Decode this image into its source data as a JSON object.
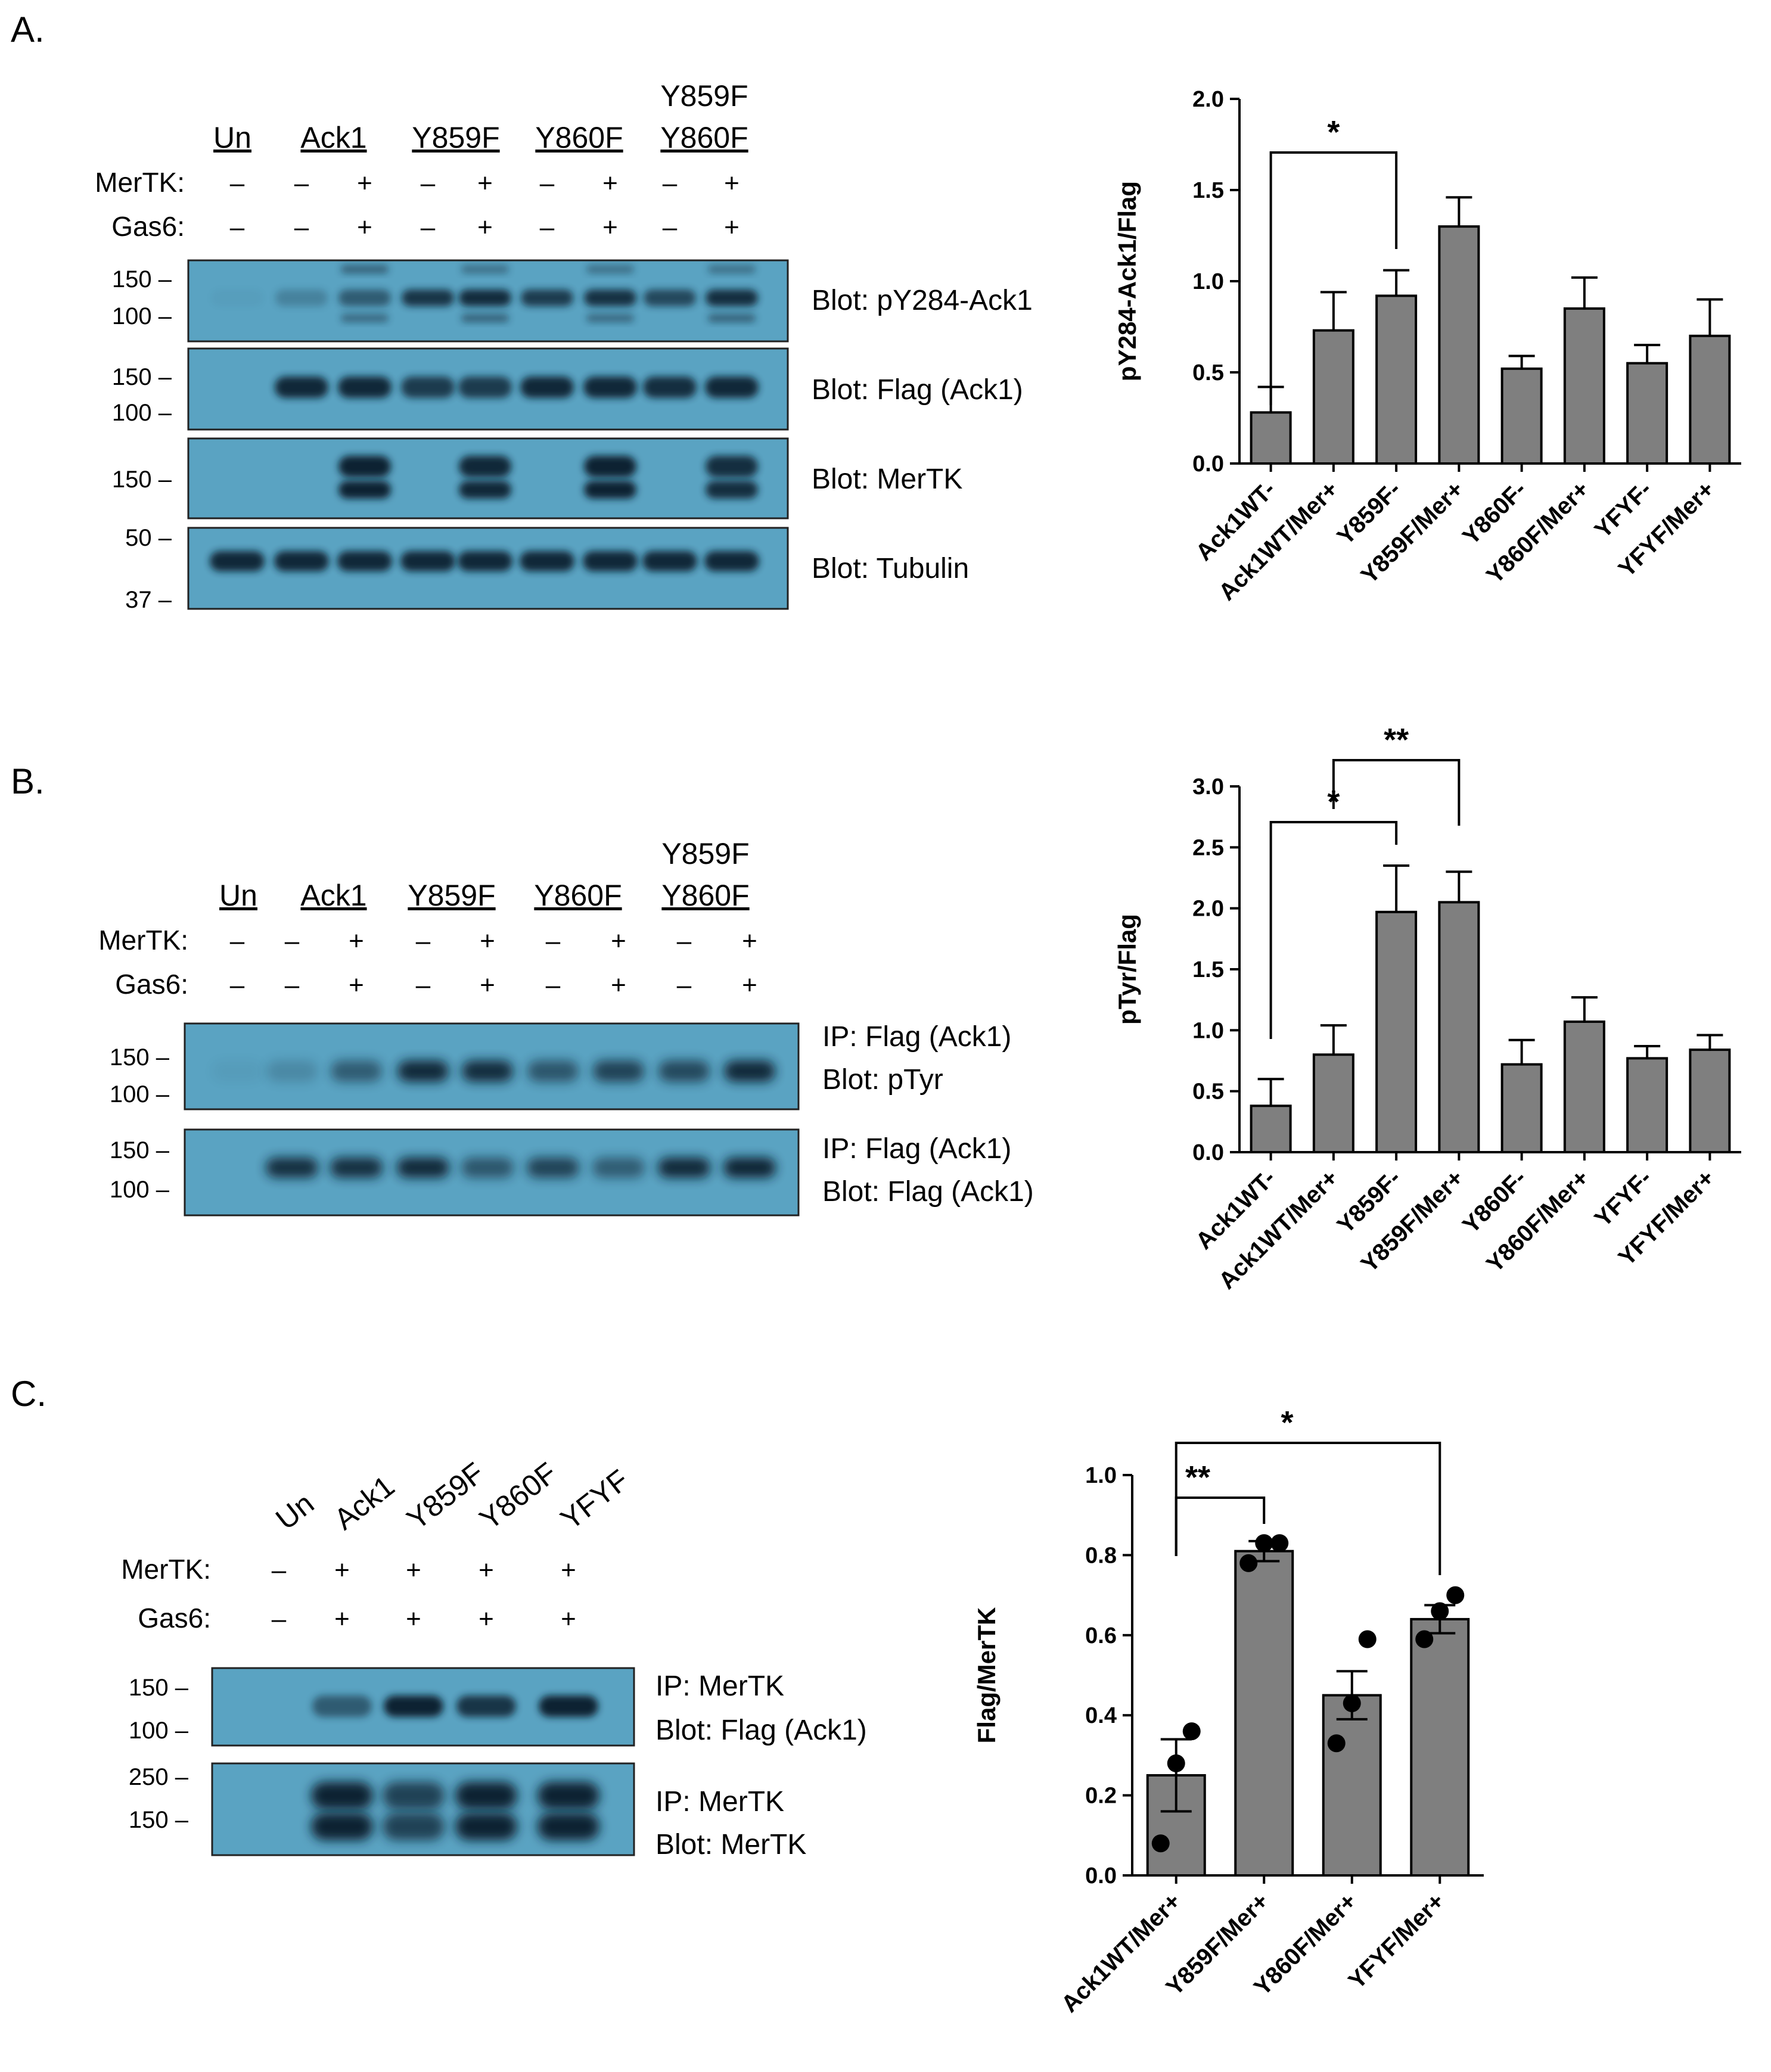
{
  "panels": {
    "A": {
      "letter": "A.",
      "lane_headers": [
        "Un",
        "Ack1",
        "Y859F",
        "Y860F",
        "Y859F",
        "Y860F"
      ],
      "row_labels": [
        "MerTK:",
        "Gas6:"
      ],
      "merTK_signs": [
        "–",
        "–",
        "+",
        "–",
        "+",
        "–",
        "+",
        "–",
        "+"
      ],
      "gas6_signs": [
        "–",
        "–",
        "+",
        "–",
        "+",
        "–",
        "+",
        "–",
        "+"
      ],
      "blots": [
        {
          "label": "Blot: pY284-Ack1",
          "mw": [
            "150 –",
            "100 –"
          ]
        },
        {
          "label": "Blot: Flag (Ack1)",
          "mw": [
            "150 –",
            "100 –"
          ]
        },
        {
          "label": "Blot: MerTK",
          "mw": [
            "150 –"
          ]
        },
        {
          "label": "Blot: Tubulin",
          "mw": [
            "50 –",
            "37 –"
          ]
        }
      ]
    },
    "B": {
      "letter": "B.",
      "lane_headers": [
        "Un",
        "Ack1",
        "Y859F",
        "Y860F",
        "Y859F",
        "Y860F"
      ],
      "row_labels": [
        "MerTK:",
        "Gas6:"
      ],
      "merTK_signs": [
        "–",
        "–",
        "+",
        "–",
        "+",
        "–",
        "+",
        "–",
        "+"
      ],
      "gas6_signs": [
        "–",
        "–",
        "+",
        "–",
        "+",
        "–",
        "+",
        "–",
        "+"
      ],
      "blots": [
        {
          "label_ip": "IP: Flag (Ack1)",
          "label_blot": "Blot: pTyr",
          "mw": [
            "150 –",
            "100 –"
          ]
        },
        {
          "label_ip": "IP: Flag (Ack1)",
          "label_blot": "Blot: Flag (Ack1)",
          "mw": [
            "150 –",
            "100 –"
          ]
        }
      ]
    },
    "C": {
      "letter": "C.",
      "lane_headers": [
        "Un",
        "Ack1",
        "Y859F",
        "Y860F",
        "YFYF"
      ],
      "row_labels": [
        "MerTK:",
        "Gas6:"
      ],
      "merTK_signs": [
        "–",
        "+",
        "+",
        "+",
        "+"
      ],
      "gas6_signs": [
        "–",
        "+",
        "+",
        "+",
        "+"
      ],
      "blots": [
        {
          "label_ip": "IP: MerTK",
          "label_blot": "Blot: Flag (Ack1)",
          "mw": [
            "150 –",
            "100 –"
          ]
        },
        {
          "label_ip": "IP: MerTK",
          "label_blot": "Blot: MerTK",
          "mw": [
            "250 –",
            "150 –"
          ]
        }
      ]
    }
  },
  "colors": {
    "bar": "#7f7f7f",
    "blot_bg": "#5aa3c2",
    "band": "#0b2433"
  },
  "chart_data": [
    {
      "id": "A",
      "type": "bar",
      "ylabel": "pY284-Ack1/Flag",
      "ylim": [
        0,
        2.0
      ],
      "yticks": [
        "0.0",
        "0.5",
        "1.0",
        "1.5",
        "2.0"
      ],
      "yticks_values": [
        0,
        0.5,
        1.0,
        1.5,
        2.0
      ],
      "categories": [
        "Ack1WT-",
        "Ack1WT/Mer+",
        "Y859F-",
        "Y859F/Mer+",
        "Y860F-",
        "Y860F/Mer+",
        "YFYF-",
        "YFYF/Mer+"
      ],
      "values": [
        0.28,
        0.73,
        0.92,
        1.3,
        0.52,
        0.85,
        0.55,
        0.7
      ],
      "errors": [
        0.14,
        0.21,
        0.14,
        0.16,
        0.07,
        0.17,
        0.1,
        0.2
      ],
      "significance": [
        {
          "from": 0,
          "to": 2,
          "label": "*"
        }
      ]
    },
    {
      "id": "B",
      "type": "bar",
      "ylabel": "pTyr/Flag",
      "ylim": [
        0,
        3.0
      ],
      "yticks": [
        "0.0",
        "0.5",
        "1.0",
        "1.5",
        "2.0",
        "2.5",
        "3.0"
      ],
      "yticks_values": [
        0,
        0.5,
        1.0,
        1.5,
        2.0,
        2.5,
        3.0
      ],
      "categories": [
        "Ack1WT-",
        "Ack1WT/Mer+",
        "Y859F-",
        "Y859F/Mer+",
        "Y860F-",
        "Y860F/Mer+",
        "YFYF-",
        "YFYF/Mer+"
      ],
      "values": [
        0.38,
        0.8,
        1.97,
        2.05,
        0.72,
        1.07,
        0.77,
        0.84
      ],
      "errors": [
        0.22,
        0.24,
        0.38,
        0.25,
        0.2,
        0.2,
        0.1,
        0.12
      ],
      "significance": [
        {
          "from": 0,
          "to": 2,
          "label": "*"
        },
        {
          "from": 1,
          "to": 3,
          "label": "**"
        }
      ]
    },
    {
      "id": "C",
      "type": "bar",
      "ylabel": "Flag/MerTK",
      "ylim": [
        0,
        1.0
      ],
      "yticks": [
        "0.0",
        "0.2",
        "0.4",
        "0.6",
        "0.8",
        "1.0"
      ],
      "yticks_values": [
        0,
        0.2,
        0.4,
        0.6,
        0.8,
        1.0
      ],
      "categories": [
        "Ack1WT/Mer+",
        "Y859F/Mer+",
        "Y860F/Mer+",
        "YFYF/Mer+"
      ],
      "values": [
        0.25,
        0.81,
        0.45,
        0.64
      ],
      "errors": [
        0.09,
        0.025,
        0.06,
        0.035
      ],
      "points": [
        [
          0.08,
          0.28,
          0.36
        ],
        [
          0.78,
          0.83,
          0.83
        ],
        [
          0.33,
          0.43,
          0.59
        ],
        [
          0.59,
          0.66,
          0.7
        ]
      ],
      "significance": [
        {
          "from": 0,
          "to": 1,
          "label": "**"
        },
        {
          "from": 0,
          "to": 3,
          "label": "*"
        }
      ]
    }
  ]
}
